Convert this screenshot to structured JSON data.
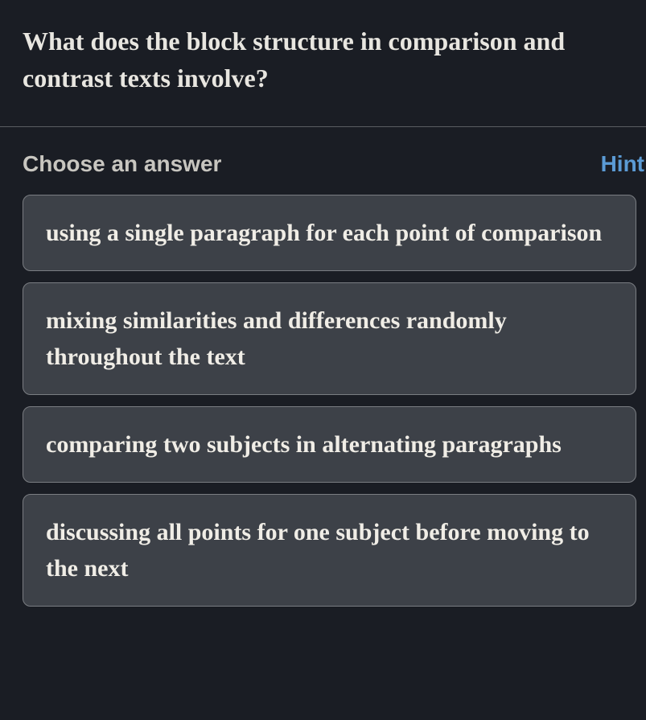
{
  "question": {
    "text": "What does the block structure in comparison and contrast texts involve?"
  },
  "answerSection": {
    "chooseLabel": "Choose an answer",
    "hintLabel": "Hint"
  },
  "options": [
    {
      "text": "using a single paragraph for each point of comparison"
    },
    {
      "text": "mixing similarities and differences randomly throughout the text"
    },
    {
      "text": "comparing two subjects in alternating paragraphs"
    },
    {
      "text": "discussing all points for one subject before moving to the next"
    }
  ],
  "colors": {
    "background": "#1a1d24",
    "textPrimary": "#e8e6e0",
    "textSecondary": "#c8c6c0",
    "hintLink": "#5b9bd5",
    "optionBg": "#3d4148",
    "optionBorder": "#7a7d82",
    "divider": "#5a5d62"
  },
  "typography": {
    "questionFontSize": 32,
    "labelFontSize": 28,
    "optionFontSize": 30,
    "questionFontFamily": "Georgia",
    "labelFontFamily": "sans-serif"
  }
}
